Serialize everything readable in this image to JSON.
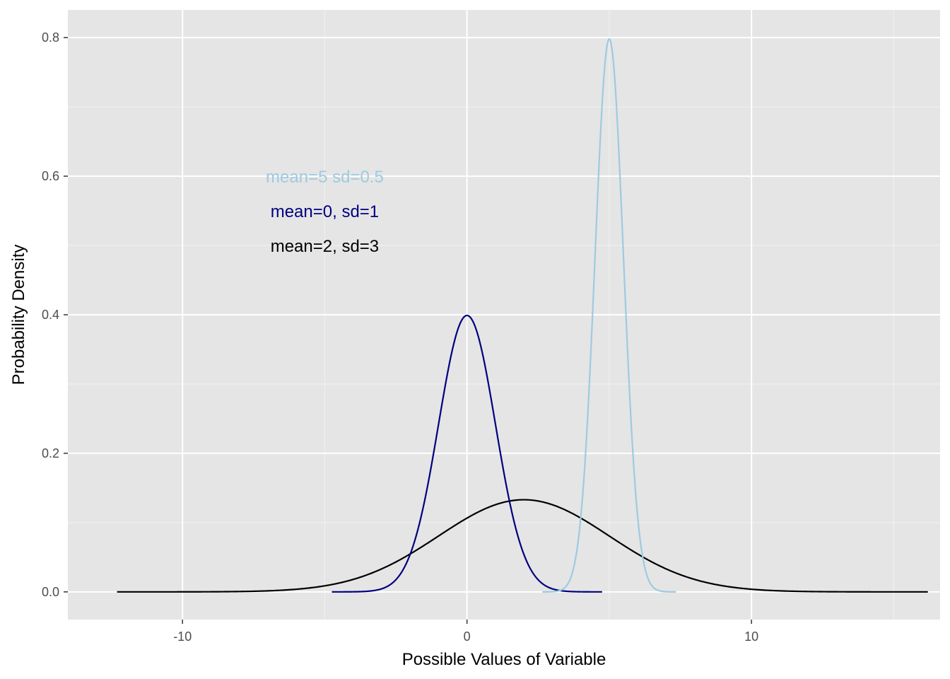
{
  "chart_data": {
    "type": "line",
    "title": "",
    "xlabel": "Possible Values of Variable",
    "ylabel": "Probability Density",
    "xlim": [
      -14.03,
      16.63
    ],
    "ylim": [
      -0.04,
      0.84
    ],
    "x_ticks": [
      -10,
      0,
      10
    ],
    "x_tick_labels": [
      "-10",
      "0",
      "10"
    ],
    "y_ticks": [
      0.0,
      0.2,
      0.4,
      0.6,
      0.8
    ],
    "y_tick_labels": [
      "0.0",
      "0.2",
      "0.4",
      "0.6",
      "0.8"
    ],
    "grid": true,
    "legend": "none",
    "background": "#e5e5e5",
    "series": [
      {
        "mean": 2,
        "sd": 3,
        "x_range": [
          -12.3,
          16.2
        ],
        "color": "#000000",
        "peak": 0.133
      },
      {
        "mean": 0,
        "sd": 1,
        "x_range": [
          -4.75,
          4.75
        ],
        "color": "#000080",
        "peak": 0.399
      },
      {
        "mean": 5,
        "sd": 0.5,
        "x_range": [
          2.65,
          7.35
        ],
        "color": "#9ecae1",
        "peak": 0.798
      }
    ],
    "annotations": [
      {
        "text": "mean=5 sd=0.5",
        "x": -5,
        "y": 0.6,
        "color": "#9ecae1"
      },
      {
        "text": "mean=0, sd=1",
        "x": -5,
        "y": 0.55,
        "color": "#000080"
      },
      {
        "text": "mean=2, sd=3",
        "x": -5,
        "y": 0.5,
        "color": "#000000"
      }
    ]
  }
}
